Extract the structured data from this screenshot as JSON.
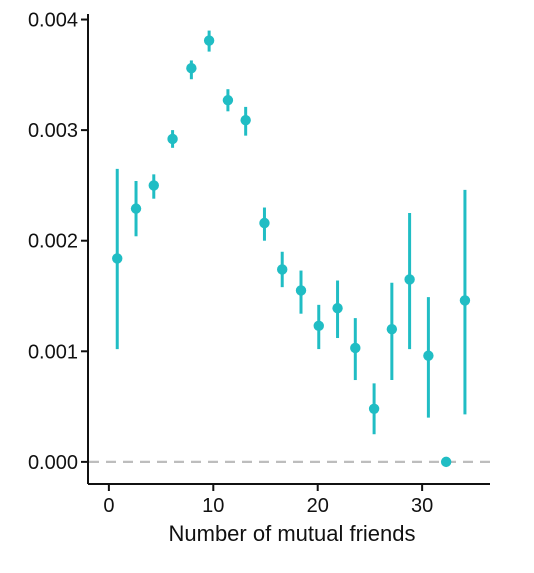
{
  "chart_data": {
    "type": "scatter",
    "title": "",
    "xlabel": "Number of mutual friends",
    "ylabel": "",
    "xlim": [
      -2,
      36.5
    ],
    "ylim": [
      -0.0002,
      0.00405
    ],
    "xticks": [
      0,
      10,
      20,
      30
    ],
    "xtick_labels": [
      "0",
      "10",
      "20",
      "30"
    ],
    "yticks": [
      0.0,
      0.001,
      0.002,
      0.003,
      0.004
    ],
    "ytick_labels": [
      "0.000",
      "0.001",
      "0.002",
      "0.003",
      "0.004"
    ],
    "grid": false,
    "reference_line_y": 0.0,
    "series": [
      {
        "points": [
          {
            "x": 0.8,
            "y": 0.00184,
            "ylow": 0.00102,
            "yhigh": 0.00265
          },
          {
            "x": 2.6,
            "y": 0.00229,
            "ylow": 0.00204,
            "yhigh": 0.00254
          },
          {
            "x": 4.3,
            "y": 0.0025,
            "ylow": 0.00238,
            "yhigh": 0.0026
          },
          {
            "x": 6.1,
            "y": 0.00292,
            "ylow": 0.00284,
            "yhigh": 0.003
          },
          {
            "x": 7.9,
            "y": 0.00356,
            "ylow": 0.00346,
            "yhigh": 0.00363
          },
          {
            "x": 9.6,
            "y": 0.00381,
            "ylow": 0.00371,
            "yhigh": 0.0039
          },
          {
            "x": 11.4,
            "y": 0.00327,
            "ylow": 0.00317,
            "yhigh": 0.00337
          },
          {
            "x": 13.1,
            "y": 0.00309,
            "ylow": 0.00295,
            "yhigh": 0.00321
          },
          {
            "x": 14.9,
            "y": 0.00216,
            "ylow": 0.002,
            "yhigh": 0.0023
          },
          {
            "x": 16.6,
            "y": 0.00174,
            "ylow": 0.00158,
            "yhigh": 0.0019
          },
          {
            "x": 18.4,
            "y": 0.00155,
            "ylow": 0.00134,
            "yhigh": 0.00173
          },
          {
            "x": 20.1,
            "y": 0.00123,
            "ylow": 0.00102,
            "yhigh": 0.00142
          },
          {
            "x": 21.9,
            "y": 0.00139,
            "ylow": 0.00112,
            "yhigh": 0.00164
          },
          {
            "x": 23.6,
            "y": 0.00103,
            "ylow": 0.00074,
            "yhigh": 0.0013
          },
          {
            "x": 25.4,
            "y": 0.00048,
            "ylow": 0.00025,
            "yhigh": 0.00071
          },
          {
            "x": 27.1,
            "y": 0.0012,
            "ylow": 0.00074,
            "yhigh": 0.00162
          },
          {
            "x": 28.8,
            "y": 0.00165,
            "ylow": 0.00102,
            "yhigh": 0.00225
          },
          {
            "x": 30.6,
            "y": 0.00096,
            "ylow": 0.0004,
            "yhigh": 0.00149
          },
          {
            "x": 32.3,
            "y": 0.0,
            "ylow": 0.0,
            "yhigh": 0.0
          },
          {
            "x": 34.1,
            "y": 0.00146,
            "ylow": 0.00043,
            "yhigh": 0.00246
          }
        ]
      }
    ]
  },
  "colors": {
    "series": "#20bdc4",
    "axis": "#111111",
    "reference_line": "#bdbdbd",
    "background": "#ffffff"
  }
}
